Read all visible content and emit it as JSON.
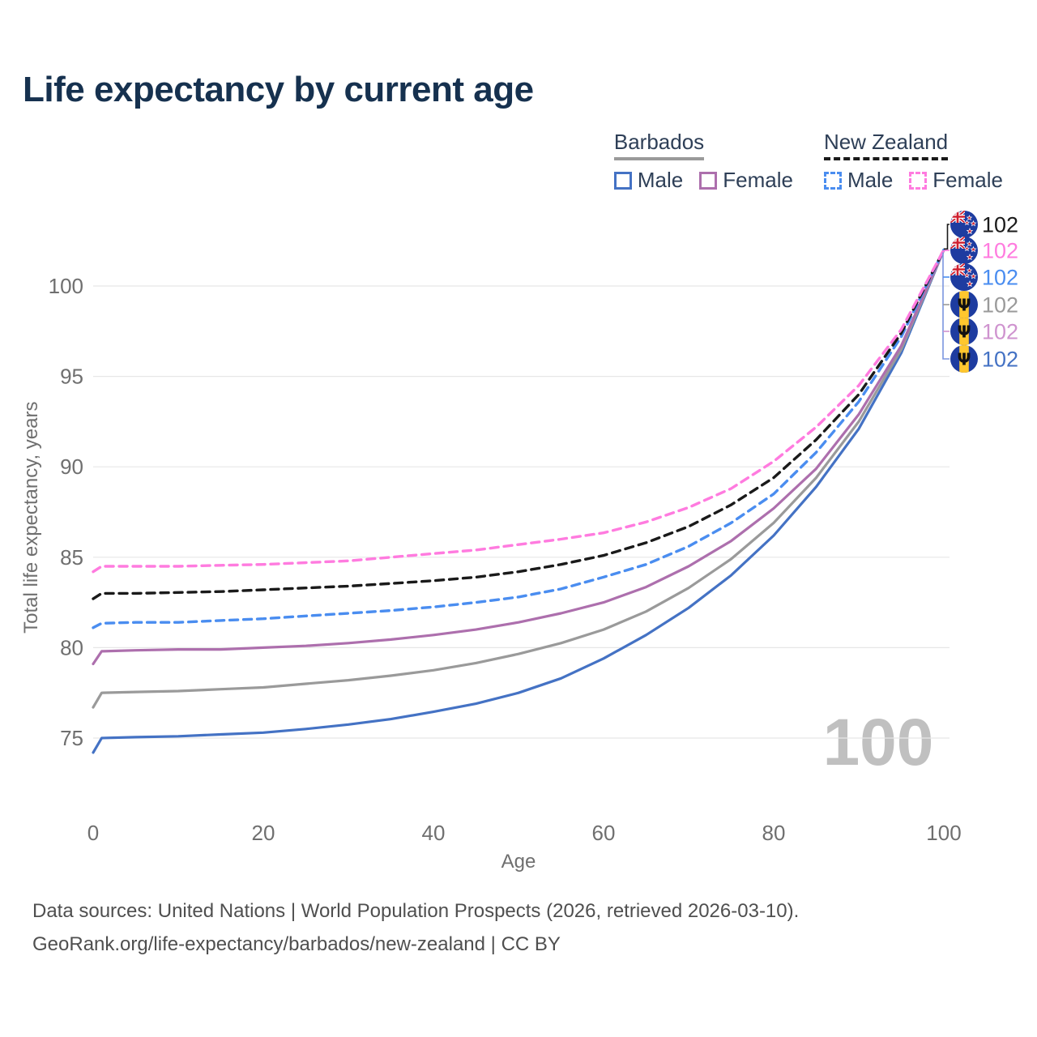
{
  "page": {
    "title": "Life expectancy by current age",
    "footer_line1": "Data sources: United Nations | World Population Prospects (2026, retrieved 2026-03-10).",
    "footer_line2": "GeoRank.org/life-expectancy/barbados/new-zealand | CC BY"
  },
  "colors": {
    "title": "#16314f",
    "legend_text": "#2e3f57",
    "axis_text": "#6f6f6f",
    "grid": "#e7e7e7",
    "footer_text": "#4f4f4f",
    "watermark": "#c0c0c0",
    "bracket_stem": "#7b96e0",
    "barbados_male": "#4472c4",
    "barbados_female": "#ad6fad",
    "barbados_both": "#9a9a9a",
    "nz_male": "#4a8df0",
    "nz_female": "#ff7bdf",
    "nz_both": "#1a1a1a",
    "flag_blue": "#1e3ca0",
    "flag_yellow": "#ffc72e",
    "flag_red": "#d02030"
  },
  "legend": {
    "groups": [
      {
        "country": "Barbados",
        "underline": {
          "style": "solid",
          "color": "#9a9a9a"
        },
        "items": [
          {
            "label": "Male",
            "color": "#4472c4",
            "dashed": false
          },
          {
            "label": "Female",
            "color": "#ad6fad",
            "dashed": false
          }
        ]
      },
      {
        "country": "New Zealand",
        "underline": {
          "style": "dashed",
          "color": "#1a1a1a"
        },
        "items": [
          {
            "label": "Male",
            "color": "#4a8df0",
            "dashed": true
          },
          {
            "label": "Female",
            "color": "#ff7bdf",
            "dashed": true
          }
        ]
      }
    ]
  },
  "chart_data": {
    "type": "line",
    "title": "Life expectancy by current age",
    "xlabel": "Age",
    "ylabel": "Total life expectancy, years",
    "xlim": [
      0,
      100
    ],
    "ylim": [
      74,
      102.5
    ],
    "xticks": [
      0,
      20,
      40,
      60,
      80,
      100
    ],
    "yticks": [
      75,
      80,
      85,
      90,
      95,
      100
    ],
    "grid": "horizontal-only",
    "legend_position": "top-right",
    "age_counter_watermark": "100",
    "x": [
      0,
      1,
      5,
      10,
      15,
      20,
      25,
      30,
      35,
      40,
      45,
      50,
      55,
      60,
      65,
      70,
      75,
      80,
      85,
      90,
      95,
      100
    ],
    "series": [
      {
        "name": "Barbados Male",
        "country": "Barbados",
        "sex": "male",
        "style": "solid",
        "color": "#4472c4",
        "end_label": "102",
        "values": [
          74.2,
          75.0,
          75.05,
          75.1,
          75.2,
          75.3,
          75.5,
          75.75,
          76.05,
          76.45,
          76.9,
          77.5,
          78.3,
          79.4,
          80.7,
          82.2,
          84.0,
          86.2,
          88.9,
          92.1,
          96.3,
          102
        ]
      },
      {
        "name": "Barbados Both sexes",
        "country": "Barbados",
        "sex": "both",
        "style": "solid",
        "color": "#9a9a9a",
        "end_label": "102",
        "values": [
          76.7,
          77.5,
          77.55,
          77.6,
          77.7,
          77.8,
          78.0,
          78.2,
          78.45,
          78.75,
          79.15,
          79.65,
          80.25,
          81.0,
          82.0,
          83.3,
          84.9,
          86.9,
          89.4,
          92.5,
          96.5,
          102
        ]
      },
      {
        "name": "Barbados Female",
        "country": "Barbados",
        "sex": "female",
        "style": "solid",
        "color": "#ad6fad",
        "end_label": "102",
        "values": [
          79.1,
          79.8,
          79.85,
          79.9,
          79.9,
          80.0,
          80.1,
          80.25,
          80.45,
          80.7,
          81.0,
          81.4,
          81.9,
          82.5,
          83.35,
          84.5,
          85.9,
          87.7,
          89.9,
          92.9,
          96.7,
          102
        ]
      },
      {
        "name": "New Zealand Male",
        "country": "New Zealand",
        "sex": "male",
        "style": "dashed",
        "color": "#4a8df0",
        "end_label": "102",
        "values": [
          81.1,
          81.35,
          81.4,
          81.4,
          81.5,
          81.6,
          81.75,
          81.9,
          82.05,
          82.25,
          82.5,
          82.8,
          83.25,
          83.9,
          84.6,
          85.6,
          86.9,
          88.5,
          90.8,
          93.6,
          97.2,
          102
        ]
      },
      {
        "name": "New Zealand Both sexes",
        "country": "New Zealand",
        "sex": "both",
        "style": "dashed",
        "color": "#1a1a1a",
        "end_label": "102",
        "values": [
          82.7,
          83.0,
          83.0,
          83.05,
          83.1,
          83.2,
          83.3,
          83.4,
          83.55,
          83.7,
          83.9,
          84.2,
          84.6,
          85.1,
          85.8,
          86.7,
          87.9,
          89.4,
          91.5,
          94.0,
          97.4,
          102
        ]
      },
      {
        "name": "New Zealand Female",
        "country": "New Zealand",
        "sex": "female",
        "style": "dashed",
        "color": "#ff7bdf",
        "end_label": "102",
        "values": [
          84.2,
          84.5,
          84.5,
          84.5,
          84.55,
          84.6,
          84.7,
          84.8,
          85.0,
          85.2,
          85.4,
          85.7,
          86.0,
          86.35,
          86.95,
          87.75,
          88.8,
          90.3,
          92.2,
          94.5,
          97.6,
          102
        ]
      }
    ],
    "convergence": {
      "age": 100,
      "value": 102
    },
    "end_label_rows": [
      {
        "flag": "new-zealand",
        "text": "102",
        "color": "#1a1a1a",
        "series": "New Zealand Both sexes"
      },
      {
        "flag": "new-zealand",
        "text": "102",
        "color": "#ff7bdf",
        "series": "New Zealand Female"
      },
      {
        "flag": "new-zealand",
        "text": "102",
        "color": "#4a8df0",
        "series": "New Zealand Male"
      },
      {
        "flag": "barbados",
        "text": "102",
        "color": "#9a9a9a",
        "series": "Barbados Both sexes"
      },
      {
        "flag": "barbados",
        "text": "102",
        "color": "#cf93cf",
        "series": "Barbados Female"
      },
      {
        "flag": "barbados",
        "text": "102",
        "color": "#4472c4",
        "series": "Barbados Male"
      }
    ]
  }
}
